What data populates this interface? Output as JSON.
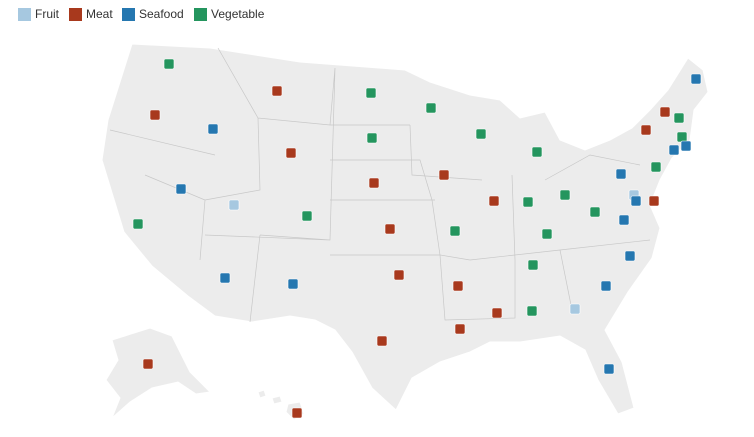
{
  "legend": [
    {
      "label": "Fruit",
      "color": "#a6c8e0"
    },
    {
      "label": "Meat",
      "color": "#a8391d"
    },
    {
      "label": "Seafood",
      "color": "#2577b0"
    },
    {
      "label": "Vegetable",
      "color": "#24955e"
    }
  ]
}
